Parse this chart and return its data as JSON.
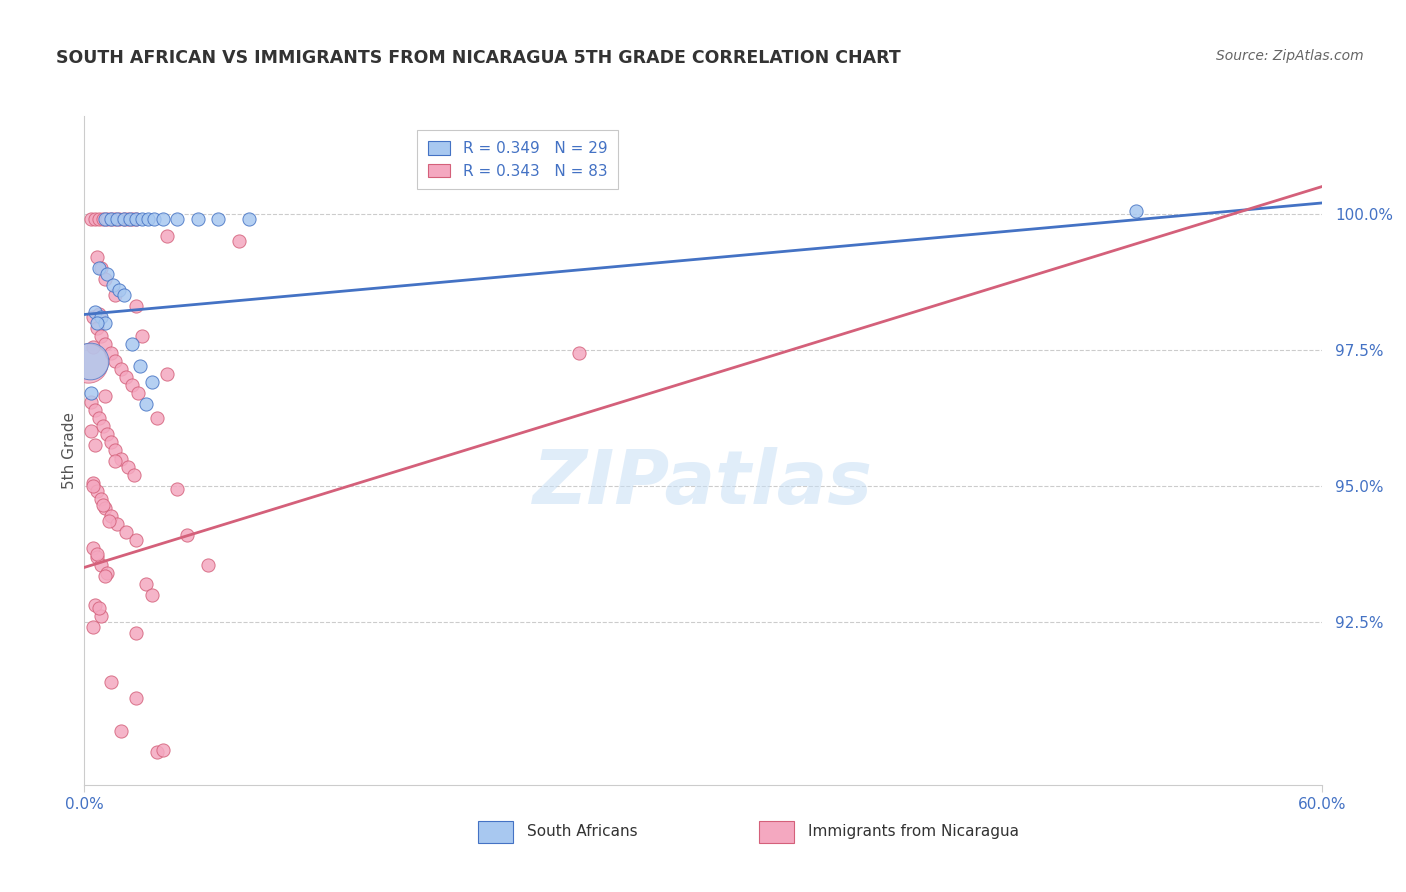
{
  "title": "SOUTH AFRICAN VS IMMIGRANTS FROM NICARAGUA 5TH GRADE CORRELATION CHART",
  "source": "Source: ZipAtlas.com",
  "ylabel": "5th Grade",
  "legend_blue_label": "South Africans",
  "legend_pink_label": "Immigrants from Nicaragua",
  "blue_R": 0.349,
  "blue_N": 29,
  "pink_R": 0.343,
  "pink_N": 83,
  "blue_color": "#A8C8F0",
  "pink_color": "#F4A8C0",
  "blue_line_color": "#4472C4",
  "pink_line_color": "#D4607A",
  "xmin": 0.0,
  "xmax": 60.0,
  "ymin": 89.5,
  "ymax": 101.8,
  "yticks": [
    92.5,
    95.0,
    97.5,
    100.0
  ],
  "xtick_labels": [
    "0.0%",
    "60.0%"
  ],
  "xtick_positions": [
    0.0,
    60.0
  ],
  "blue_trend_x": [
    0.0,
    60.0
  ],
  "blue_trend_y": [
    98.15,
    100.2
  ],
  "pink_trend_x": [
    0.0,
    60.0
  ],
  "pink_trend_y": [
    93.5,
    100.5
  ],
  "blue_scatter": [
    [
      1.0,
      99.9
    ],
    [
      1.3,
      99.9
    ],
    [
      1.6,
      99.9
    ],
    [
      1.9,
      99.9
    ],
    [
      2.2,
      99.9
    ],
    [
      2.5,
      99.9
    ],
    [
      2.8,
      99.9
    ],
    [
      3.1,
      99.9
    ],
    [
      3.4,
      99.9
    ],
    [
      3.8,
      99.9
    ],
    [
      4.5,
      99.9
    ],
    [
      5.5,
      99.9
    ],
    [
      6.5,
      99.9
    ],
    [
      8.0,
      99.9
    ],
    [
      0.7,
      99.0
    ],
    [
      1.1,
      98.9
    ],
    [
      1.4,
      98.7
    ],
    [
      1.7,
      98.6
    ],
    [
      0.5,
      98.2
    ],
    [
      0.8,
      98.1
    ],
    [
      1.0,
      98.0
    ],
    [
      2.3,
      97.6
    ],
    [
      2.7,
      97.2
    ],
    [
      3.3,
      96.9
    ],
    [
      0.3,
      96.7
    ],
    [
      3.0,
      96.5
    ],
    [
      51.0,
      100.05
    ],
    [
      1.9,
      98.5
    ],
    [
      0.6,
      98.0
    ]
  ],
  "blue_sizes": [
    100,
    100,
    100,
    100,
    100,
    100,
    100,
    100,
    100,
    100,
    100,
    100,
    100,
    100,
    100,
    100,
    100,
    100,
    100,
    100,
    100,
    100,
    100,
    100,
    500,
    100,
    100,
    100,
    100
  ],
  "large_blue_bubble": [
    0.25,
    97.3,
    700
  ],
  "pink_scatter": [
    [
      0.3,
      99.9
    ],
    [
      0.5,
      99.9
    ],
    [
      0.7,
      99.9
    ],
    [
      0.9,
      99.9
    ],
    [
      1.1,
      99.9
    ],
    [
      1.3,
      99.9
    ],
    [
      1.5,
      99.9
    ],
    [
      1.7,
      99.9
    ],
    [
      1.9,
      99.9
    ],
    [
      2.1,
      99.9
    ],
    [
      2.3,
      99.9
    ],
    [
      2.5,
      99.9
    ],
    [
      4.0,
      99.6
    ],
    [
      0.6,
      99.2
    ],
    [
      0.8,
      99.0
    ],
    [
      1.0,
      98.8
    ],
    [
      1.5,
      98.5
    ],
    [
      2.5,
      98.3
    ],
    [
      0.4,
      98.1
    ],
    [
      0.6,
      97.9
    ],
    [
      0.8,
      97.75
    ],
    [
      1.0,
      97.6
    ],
    [
      1.3,
      97.45
    ],
    [
      1.5,
      97.3
    ],
    [
      1.8,
      97.15
    ],
    [
      2.0,
      97.0
    ],
    [
      2.3,
      96.85
    ],
    [
      2.6,
      96.7
    ],
    [
      0.3,
      96.55
    ],
    [
      0.5,
      96.4
    ],
    [
      0.7,
      96.25
    ],
    [
      0.9,
      96.1
    ],
    [
      1.1,
      95.95
    ],
    [
      1.3,
      95.8
    ],
    [
      1.5,
      95.65
    ],
    [
      1.8,
      95.5
    ],
    [
      2.1,
      95.35
    ],
    [
      2.4,
      95.2
    ],
    [
      0.4,
      95.05
    ],
    [
      0.6,
      94.9
    ],
    [
      0.8,
      94.75
    ],
    [
      1.0,
      94.6
    ],
    [
      1.3,
      94.45
    ],
    [
      1.6,
      94.3
    ],
    [
      2.0,
      94.15
    ],
    [
      2.5,
      94.0
    ],
    [
      0.4,
      93.85
    ],
    [
      0.6,
      93.7
    ],
    [
      0.8,
      93.55
    ],
    [
      1.1,
      93.4
    ],
    [
      3.0,
      93.2
    ],
    [
      3.3,
      93.0
    ],
    [
      0.5,
      92.8
    ],
    [
      0.8,
      92.6
    ],
    [
      2.5,
      92.3
    ],
    [
      1.3,
      91.4
    ],
    [
      2.5,
      91.1
    ],
    [
      1.8,
      90.5
    ],
    [
      3.5,
      90.1
    ],
    [
      0.7,
      98.15
    ],
    [
      0.4,
      97.55
    ],
    [
      1.0,
      96.65
    ],
    [
      0.3,
      96.0
    ],
    [
      0.5,
      95.75
    ],
    [
      1.5,
      95.45
    ],
    [
      0.4,
      95.0
    ],
    [
      0.9,
      94.65
    ],
    [
      1.2,
      94.35
    ],
    [
      0.6,
      93.75
    ],
    [
      1.0,
      93.35
    ],
    [
      0.7,
      92.75
    ],
    [
      0.4,
      92.4
    ],
    [
      2.8,
      97.75
    ],
    [
      4.0,
      97.05
    ],
    [
      3.5,
      96.25
    ],
    [
      4.5,
      94.95
    ],
    [
      5.0,
      94.1
    ],
    [
      6.0,
      93.55
    ],
    [
      7.5,
      99.5
    ],
    [
      24.0,
      97.45
    ],
    [
      3.8,
      90.15
    ]
  ],
  "large_pink_bubble": [
    0.2,
    97.25,
    800
  ]
}
